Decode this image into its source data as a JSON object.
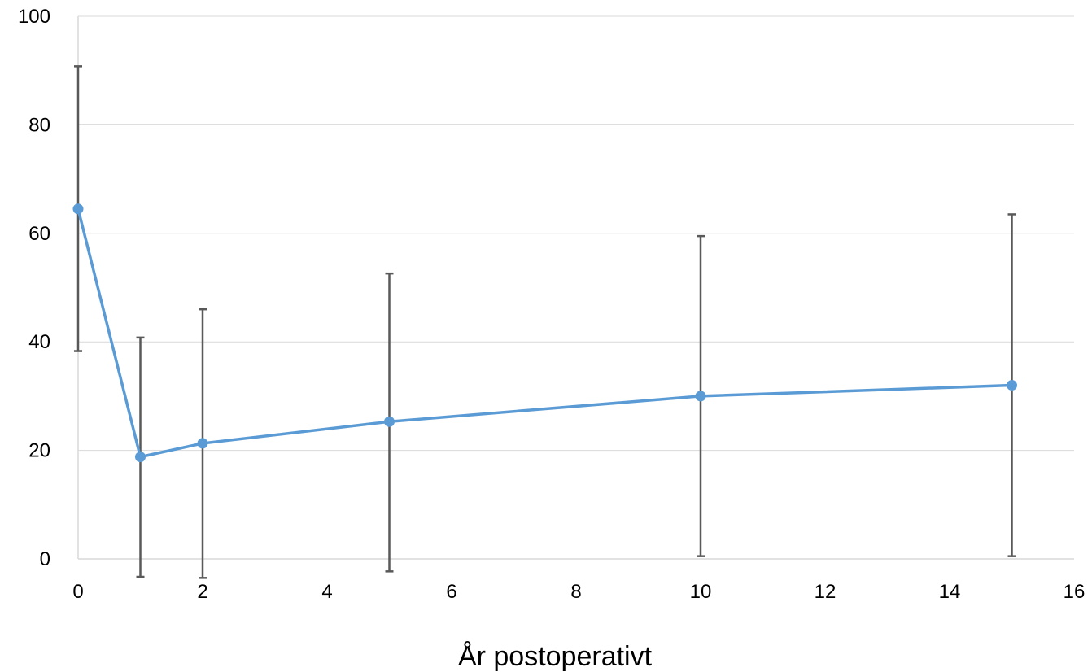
{
  "chart_data": {
    "type": "line",
    "title": "",
    "xlabel": "År postoperativt",
    "ylabel": "",
    "xlim": [
      0,
      16
    ],
    "ylim": [
      0,
      100
    ],
    "x_ticks": [
      0,
      2,
      4,
      6,
      8,
      10,
      12,
      14,
      16
    ],
    "y_ticks": [
      0,
      20,
      40,
      60,
      80,
      100
    ],
    "grid": "horizontal",
    "legend": "none",
    "colors": {
      "line": "#5b9bd5",
      "error_bar": "#595959",
      "grid": "#d9d9d9",
      "axis": "#d9d9d9"
    },
    "series": [
      {
        "x": [
          0,
          1,
          2,
          5,
          10,
          15
        ],
        "y": [
          64.5,
          18.8,
          21.3,
          25.3,
          30.0,
          32.0
        ],
        "error_low": [
          38.3,
          -3.3,
          -3.5,
          -2.3,
          0.5,
          0.5
        ],
        "error_high": [
          90.8,
          40.8,
          46.0,
          52.6,
          59.5,
          63.5
        ]
      }
    ]
  }
}
